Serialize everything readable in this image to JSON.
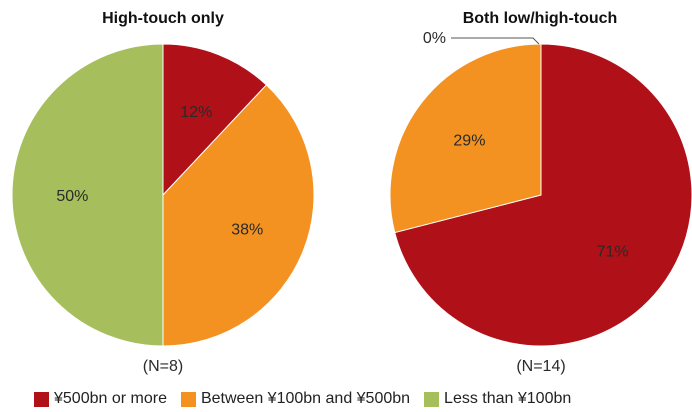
{
  "chart_data": [
    {
      "type": "pie",
      "title": "High-touch only",
      "note": "(N=8)",
      "slices": [
        {
          "label": "¥500bn or more",
          "value": 12,
          "display": "12%"
        },
        {
          "label": "Between ¥100bn and ¥500bn",
          "value": 38,
          "display": "38%"
        },
        {
          "label": "Less than ¥100bn",
          "value": 50,
          "display": "50%"
        }
      ]
    },
    {
      "type": "pie",
      "title": "Both low/high-touch",
      "note": "(N=14)",
      "slices": [
        {
          "label": "¥500bn or more",
          "value": 71,
          "display": "71%"
        },
        {
          "label": "Between ¥100bn and ¥500bn",
          "value": 29,
          "display": "29%"
        },
        {
          "label": "Less than ¥100bn",
          "value": 0,
          "display": "0%"
        }
      ]
    }
  ],
  "legend": [
    {
      "label": "¥500bn or more",
      "color": "#b01018"
    },
    {
      "label": "Between ¥100bn and ¥500bn",
      "color": "#f39221"
    },
    {
      "label": "Less than ¥100bn",
      "color": "#a6bf5c"
    }
  ]
}
